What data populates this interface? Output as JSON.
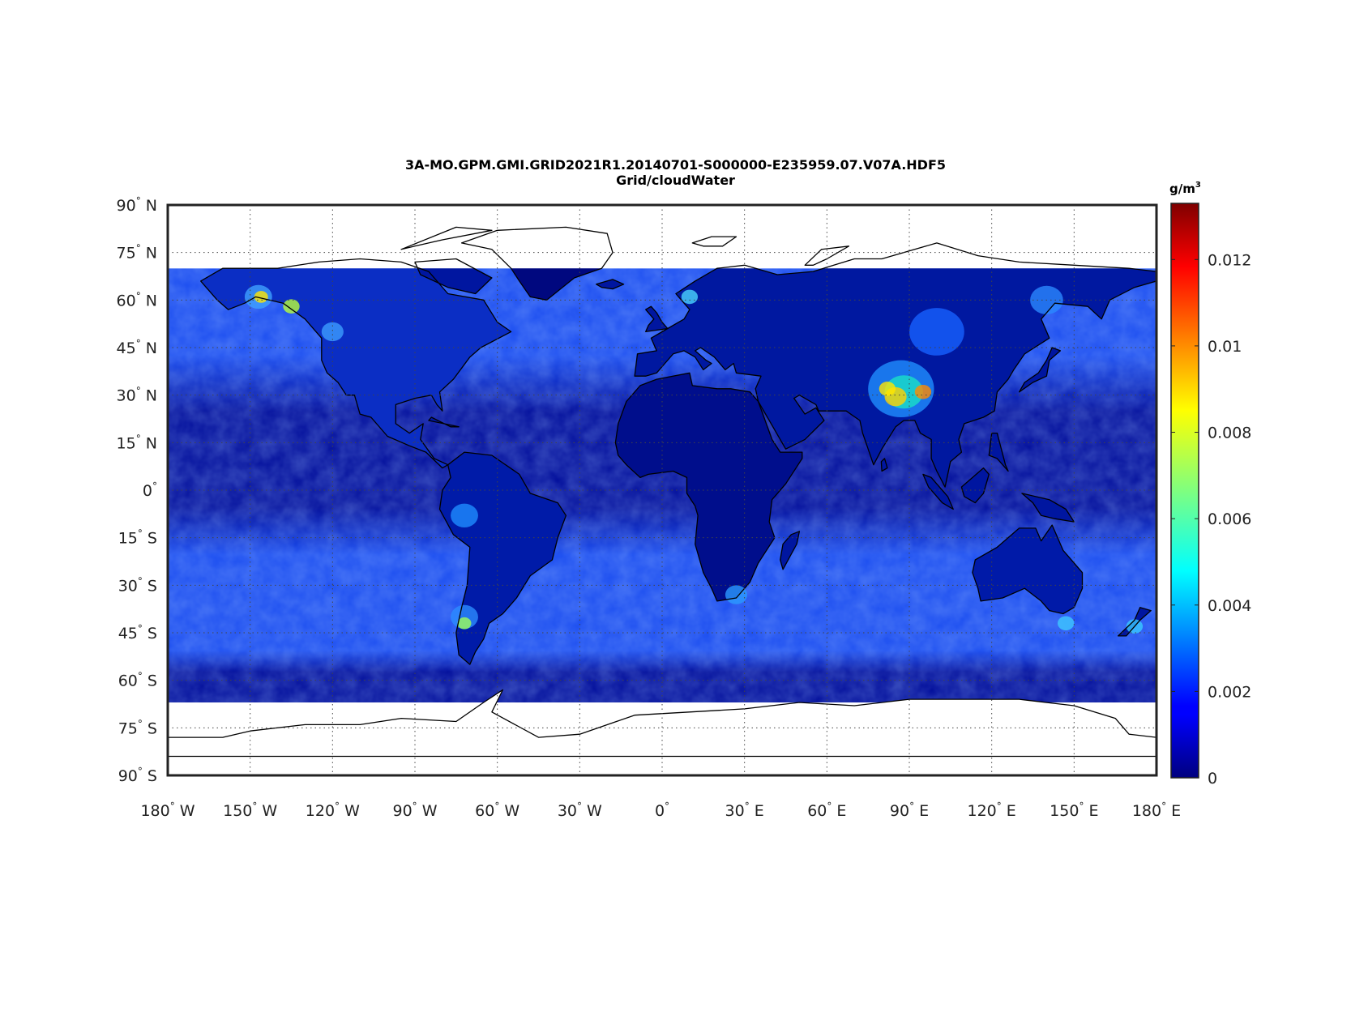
{
  "figure": {
    "title": "3A-MO.GPM.GMI.GRID2021R1.20140701-S000000-E235959.07.V07A.HDF5",
    "subtitle": "Grid/cloudWater"
  },
  "map": {
    "projection": "equirectangular",
    "lon_range": [
      -180,
      180
    ],
    "lat_range": [
      -90,
      90
    ],
    "data_lat_range": [
      -67,
      70
    ],
    "grid": "dotted",
    "lon_ticks": [
      {
        "value": -180,
        "deg": "180",
        "hemi": "W"
      },
      {
        "value": -150,
        "deg": "150",
        "hemi": "W"
      },
      {
        "value": -120,
        "deg": "120",
        "hemi": "W"
      },
      {
        "value": -90,
        "deg": "90",
        "hemi": "W"
      },
      {
        "value": -60,
        "deg": "60",
        "hemi": "W"
      },
      {
        "value": -30,
        "deg": "30",
        "hemi": "W"
      },
      {
        "value": 0,
        "deg": "0",
        "hemi": ""
      },
      {
        "value": 30,
        "deg": "30",
        "hemi": "E"
      },
      {
        "value": 60,
        "deg": "60",
        "hemi": "E"
      },
      {
        "value": 90,
        "deg": "90",
        "hemi": "E"
      },
      {
        "value": 120,
        "deg": "120",
        "hemi": "E"
      },
      {
        "value": 150,
        "deg": "150",
        "hemi": "E"
      },
      {
        "value": 180,
        "deg": "180",
        "hemi": "E"
      }
    ],
    "lat_ticks": [
      {
        "value": 90,
        "deg": "90",
        "hemi": "N"
      },
      {
        "value": 75,
        "deg": "75",
        "hemi": "N"
      },
      {
        "value": 60,
        "deg": "60",
        "hemi": "N"
      },
      {
        "value": 45,
        "deg": "45",
        "hemi": "N"
      },
      {
        "value": 30,
        "deg": "30",
        "hemi": "N"
      },
      {
        "value": 15,
        "deg": "15",
        "hemi": "N"
      },
      {
        "value": 0,
        "deg": "0",
        "hemi": ""
      },
      {
        "value": -15,
        "deg": "15",
        "hemi": "S"
      },
      {
        "value": -30,
        "deg": "30",
        "hemi": "S"
      },
      {
        "value": -45,
        "deg": "45",
        "hemi": "S"
      },
      {
        "value": -60,
        "deg": "60",
        "hemi": "S"
      },
      {
        "value": -75,
        "deg": "75",
        "hemi": "S"
      },
      {
        "value": -90,
        "deg": "90",
        "hemi": "S"
      }
    ]
  },
  "colorbar": {
    "unit_base": "g/m",
    "unit_exp": "3",
    "colormap": "jet",
    "range": [
      0,
      0.0133
    ],
    "ticks": [
      {
        "value": 0,
        "label": "0"
      },
      {
        "value": 0.002,
        "label": "0.002"
      },
      {
        "value": 0.004,
        "label": "0.004"
      },
      {
        "value": 0.006,
        "label": "0.006"
      },
      {
        "value": 0.008,
        "label": "0.008"
      },
      {
        "value": 0.01,
        "label": "0.01"
      },
      {
        "value": 0.012,
        "label": "0.012"
      }
    ]
  },
  "colors": {
    "ocean_tropics": "#000c9a",
    "ocean_midlat": "#1a4cf0",
    "land_dark": "#00087f",
    "no_data": "#ffffff",
    "coastline": "#000000",
    "frame": "#222222"
  }
}
